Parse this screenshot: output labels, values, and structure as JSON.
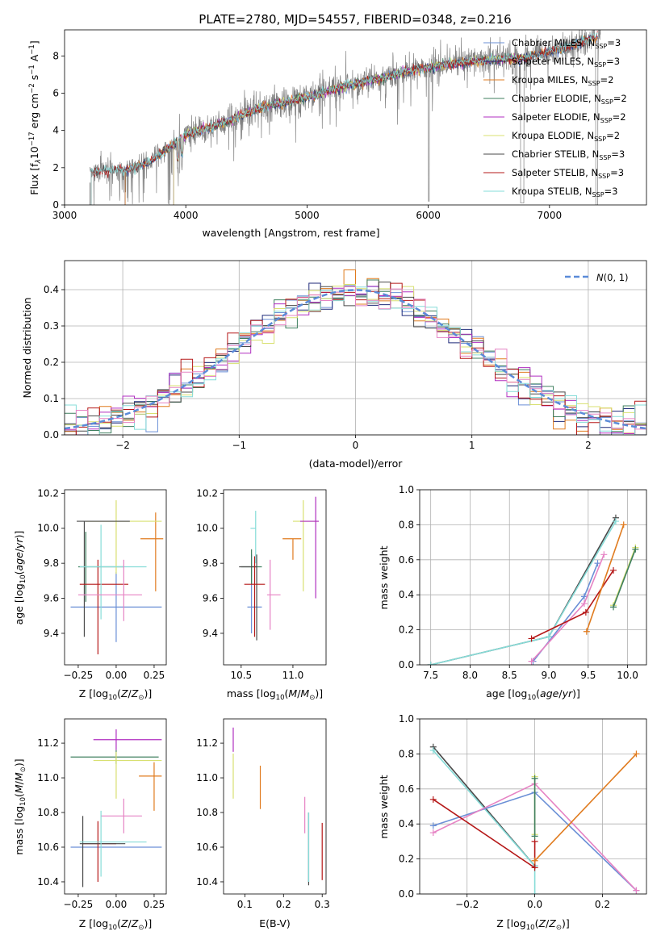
{
  "figure_title": "PLATE=2780, MJD=54557, FIBERID=0348, z=0.216",
  "colors": {
    "chabrier_miles": "#6a8fd6",
    "salpeter_miles": "#1f2a7a",
    "kroupa_miles": "#e07b1f",
    "chabrier_elodie": "#3f7f5f",
    "salpeter_elodie": "#b02fc0",
    "kroupa_elodie": "#d8e070",
    "chabrier_stelib": "#4a4a4a",
    "salpeter_stelib": "#b51818",
    "kroupa_stelib": "#86dcd8",
    "data": "#808080",
    "kroupa_elodie_pink": "#e683c4"
  },
  "chart_data": [
    {
      "id": "spectrum",
      "type": "line",
      "title": "PLATE=2780, MJD=54557, FIBERID=0348, z=0.216",
      "xlabel": "wavelength [Angstrom, rest frame]",
      "ylabel": "Flux [f_λ 10^-17 erg cm^-2 s^-1 A^-1]",
      "xlim": [
        3000,
        7800
      ],
      "ylim": [
        0,
        9.4
      ],
      "xticks": [
        3000,
        4000,
        5000,
        6000,
        7000
      ],
      "yticks": [
        0,
        2,
        4,
        6,
        8
      ],
      "grid": false,
      "legend_position": "top-right",
      "continuum": {
        "x": [
          3200,
          3500,
          3700,
          3900,
          4000,
          4300,
          4600,
          5000,
          5300,
          5600,
          5900,
          6200,
          6500,
          6800,
          7100,
          7400
        ],
        "y": [
          1.8,
          1.9,
          2.3,
          3.3,
          3.8,
          4.4,
          5.2,
          5.8,
          6.4,
          6.8,
          7.3,
          7.6,
          7.8,
          7.9,
          8.4,
          9.1
        ]
      },
      "series": [
        {
          "label": "Chabrier MILES, N",
          "sub": "SSP",
          "suffix": "=3"
        },
        {
          "label": "Salpeter MILES, N",
          "sub": "SSP",
          "suffix": "=3"
        },
        {
          "label": "Kroupa MILES, N",
          "sub": "SSP",
          "suffix": "=2"
        },
        {
          "label": "Chabrier ELODIE, N",
          "sub": "SSP",
          "suffix": "=2"
        },
        {
          "label": "Salpeter ELODIE, N",
          "sub": "SSP",
          "suffix": "=2"
        },
        {
          "label": "Kroupa ELODIE, N",
          "sub": "SSP",
          "suffix": "=2"
        },
        {
          "label": "Chabrier STELIB, N",
          "sub": "SSP",
          "suffix": "=3"
        },
        {
          "label": "Salpeter STELIB, N",
          "sub": "SSP",
          "suffix": "=3"
        },
        {
          "label": "Kroupa STELIB, N",
          "sub": "SSP",
          "suffix": "=3"
        }
      ]
    },
    {
      "id": "residuals",
      "type": "histogram",
      "xlabel": "(data-model)/error",
      "ylabel": "Normed distribution",
      "xlim": [
        -2.5,
        2.5
      ],
      "ylim": [
        0,
        0.48
      ],
      "xticks": [
        -2,
        -1,
        0,
        1,
        2
      ],
      "yticks": [
        0.0,
        0.1,
        0.2,
        0.3,
        0.4
      ],
      "grid": true,
      "bin_width": 0.1,
      "legend_position": "top-right",
      "legend_label": "N(0,1)"
    },
    {
      "id": "age_vs_Z",
      "type": "errorbar",
      "xlabel": "Z [log10(Z/Z_sun)]",
      "ylabel": "age  [log10(age/yr)]",
      "xlim": [
        -0.34,
        0.33
      ],
      "ylim": [
        9.22,
        10.22
      ],
      "xticks": [
        -0.25,
        0.0,
        0.25
      ],
      "yticks": [
        9.4,
        9.6,
        9.8,
        10.0,
        10.2
      ],
      "bars": [
        {
          "c": "chabrier_miles",
          "x": 0.0,
          "xerr": [
            0.3,
            0.3
          ],
          "y": 9.55,
          "yerr": [
            0.2,
            0.2
          ]
        },
        {
          "c": "kroupa_miles",
          "x": 0.26,
          "xerr": [
            0.1,
            0.05
          ],
          "y": 9.94,
          "yerr": [
            0.3,
            0.15
          ]
        },
        {
          "c": "chabrier_elodie",
          "x": -0.2,
          "xerr": [
            0.05,
            0.25
          ],
          "y": 9.78,
          "yerr": [
            0.2,
            0.2
          ]
        },
        {
          "c": "kroupa_elodie",
          "x": 0.0,
          "xerr": [
            0.2,
            0.3
          ],
          "y": 10.04,
          "yerr": [
            0.3,
            0.12
          ]
        },
        {
          "c": "chabrier_stelib",
          "x": -0.21,
          "xerr": [
            0.05,
            0.3
          ],
          "y": 10.04,
          "yerr": [
            0.66,
            0.0
          ]
        },
        {
          "c": "salpeter_stelib",
          "x": -0.12,
          "xerr": [
            0.12,
            0.2
          ],
          "y": 9.68,
          "yerr": [
            0.4,
            0.14
          ]
        },
        {
          "c": "kroupa_stelib",
          "x": -0.1,
          "xerr": [
            0.14,
            0.3
          ],
          "y": 9.78,
          "yerr": [
            0.3,
            0.24
          ]
        },
        {
          "c": "kroupa_elodie_pink",
          "x": 0.05,
          "xerr": [
            0.3,
            0.12
          ],
          "y": 9.62,
          "yerr": [
            0.15,
            0.2
          ]
        }
      ]
    },
    {
      "id": "age_vs_mass",
      "type": "errorbar",
      "xlabel": "mass [log10(M/M_sun)]",
      "ylabel": "",
      "xlim": [
        10.33,
        11.32
      ],
      "ylim": [
        9.22,
        10.22
      ],
      "xticks": [
        10.5,
        11.0
      ],
      "yticks": [
        9.4,
        9.6,
        9.8,
        10.0,
        10.2
      ],
      "bars": [
        {
          "c": "chabrier_miles",
          "x": 10.6,
          "xerr": [
            0.04,
            0.1
          ],
          "y": 9.55,
          "yerr": [
            0.15,
            0.3
          ]
        },
        {
          "c": "kroupa_miles",
          "x": 11.0,
          "xerr": [
            0.1,
            0.08
          ],
          "y": 9.94,
          "yerr": [
            0.12,
            0.0
          ]
        },
        {
          "c": "chabrier_elodie",
          "x": 10.6,
          "xerr": [
            0.1,
            0.1
          ],
          "y": 9.78,
          "yerr": [
            0.1,
            0.1
          ]
        },
        {
          "c": "kroupa_elodie",
          "x": 11.1,
          "xerr": [
            0.1,
            0.15
          ],
          "y": 10.04,
          "yerr": [
            0.4,
            0.12
          ]
        },
        {
          "c": "salpeter_elodie",
          "x": 11.22,
          "xerr": [
            0.15,
            0.03
          ],
          "y": 10.04,
          "yerr": [
            0.44,
            0.14
          ]
        },
        {
          "c": "chabrier_stelib",
          "x": 10.65,
          "xerr": [
            0.17,
            0.0
          ],
          "y": 9.78,
          "yerr": [
            0.42,
            0.07
          ]
        },
        {
          "c": "salpeter_stelib",
          "x": 10.63,
          "xerr": [
            0.1,
            0.1
          ],
          "y": 9.68,
          "yerr": [
            0.3,
            0.16
          ]
        },
        {
          "c": "kroupa_stelib",
          "x": 10.64,
          "xerr": [
            0.05,
            0.0
          ],
          "y": 10.0,
          "yerr": [
            0.2,
            0.1
          ]
        },
        {
          "c": "kroupa_elodie_pink",
          "x": 10.78,
          "xerr": [
            0.03,
            0.1
          ],
          "y": 9.62,
          "yerr": [
            0.2,
            0.2
          ]
        }
      ]
    },
    {
      "id": "weight_vs_age",
      "type": "line",
      "xlabel": "age  [log10(age/yr)]",
      "ylabel": "mass weight",
      "xlim": [
        7.36,
        10.24
      ],
      "ylim": [
        0,
        1.0
      ],
      "xticks": [
        7.5,
        8.0,
        8.5,
        9.0,
        9.5,
        10.0
      ],
      "yticks": [
        0.0,
        0.2,
        0.4,
        0.6,
        0.8,
        1.0
      ],
      "grid": true,
      "series": [
        {
          "c": "chabrier_stelib",
          "x": [
            7.5,
            9.0,
            9.85
          ],
          "y": [
            0.0,
            0.16,
            0.84
          ]
        },
        {
          "c": "kroupa_stelib",
          "x": [
            7.5,
            9.0,
            9.85
          ],
          "y": [
            0.0,
            0.16,
            0.82
          ]
        },
        {
          "c": "chabrier_miles",
          "x": [
            8.8,
            9.45,
            9.62
          ],
          "y": [
            0.02,
            0.39,
            0.58
          ]
        },
        {
          "c": "kroupa_elodie_pink",
          "x": [
            8.78,
            9.45,
            9.7
          ],
          "y": [
            0.02,
            0.35,
            0.63
          ]
        },
        {
          "c": "salpeter_stelib",
          "x": [
            8.78,
            9.47,
            9.82
          ],
          "y": [
            0.15,
            0.3,
            0.54
          ]
        },
        {
          "c": "kroupa_miles",
          "x": [
            9.48,
            9.95
          ],
          "y": [
            0.19,
            0.8
          ]
        },
        {
          "c": "kroupa_elodie",
          "x": [
            9.82,
            10.1
          ],
          "y": [
            0.34,
            0.67
          ]
        },
        {
          "c": "chabrier_elodie",
          "x": [
            9.82,
            10.1
          ],
          "y": [
            0.33,
            0.66
          ]
        }
      ]
    },
    {
      "id": "mass_vs_Z",
      "type": "errorbar",
      "xlabel": "Z [log10(Z/Z_sun)]",
      "ylabel": "mass [log10(M/M_sun)]",
      "xlim": [
        -0.34,
        0.33
      ],
      "ylim": [
        10.33,
        11.34
      ],
      "xticks": [
        -0.25,
        0.0,
        0.25
      ],
      "yticks": [
        10.4,
        10.6,
        10.8,
        11.0,
        11.2
      ],
      "bars": [
        {
          "c": "salpeter_elodie",
          "x": 0.0,
          "xerr": [
            0.15,
            0.3
          ],
          "y": 11.22,
          "yerr": [
            0.06,
            0.06
          ]
        },
        {
          "c": "chabrier_elodie",
          "x": 0.0,
          "xerr": [
            0.3,
            0.28
          ],
          "y": 11.12,
          "yerr": [
            0.04,
            0.04
          ]
        },
        {
          "c": "kroupa_elodie",
          "x": 0.0,
          "xerr": [
            0.15,
            0.3
          ],
          "y": 11.1,
          "yerr": [
            0.22,
            0.05
          ]
        },
        {
          "c": "kroupa_miles",
          "x": 0.25,
          "xerr": [
            0.1,
            0.05
          ],
          "y": 11.01,
          "yerr": [
            0.2,
            0.08
          ]
        },
        {
          "c": "kroupa_elodie_pink",
          "x": 0.05,
          "xerr": [
            0.15,
            0.12
          ],
          "y": 10.78,
          "yerr": [
            0.1,
            0.1
          ]
        },
        {
          "c": "chabrier_miles",
          "x": 0.0,
          "xerr": [
            0.3,
            0.3
          ],
          "y": 10.6,
          "yerr": [
            0.0,
            0.0
          ]
        },
        {
          "c": "salpeter_stelib",
          "x": -0.12,
          "xerr": [
            0.1,
            0.12
          ],
          "y": 10.62,
          "yerr": [
            0.22,
            0.13
          ]
        },
        {
          "c": "chabrier_stelib",
          "x": -0.22,
          "xerr": [
            0.02,
            0.28
          ],
          "y": 10.62,
          "yerr": [
            0.25,
            0.16
          ]
        },
        {
          "c": "kroupa_stelib",
          "x": -0.1,
          "xerr": [
            0.14,
            0.3
          ],
          "y": 10.63,
          "yerr": [
            0.2,
            0.18
          ]
        }
      ]
    },
    {
      "id": "mass_vs_ebv",
      "type": "errorbar",
      "xlabel": "E(B-V)",
      "ylabel": "",
      "xlim": [
        0.045,
        0.31
      ],
      "ylim": [
        10.33,
        11.34
      ],
      "xticks": [
        0.1,
        0.2,
        0.3
      ],
      "yticks": [
        10.4,
        10.6,
        10.8,
        11.0,
        11.2
      ],
      "bars": [
        {
          "c": "salpeter_elodie",
          "x": 0.07,
          "xerr": [
            0,
            0
          ],
          "y": 11.22,
          "yerr": [
            0.07,
            0.07
          ]
        },
        {
          "c": "kroupa_elodie",
          "x": 0.07,
          "xerr": [
            0,
            0
          ],
          "y": 11.04,
          "yerr": [
            0.16,
            0.1
          ]
        },
        {
          "c": "kroupa_miles",
          "x": 0.14,
          "xerr": [
            0,
            0
          ],
          "y": 10.95,
          "yerr": [
            0.13,
            0.12
          ]
        },
        {
          "c": "kroupa_elodie_pink",
          "x": 0.255,
          "xerr": [
            0,
            0
          ],
          "y": 10.78,
          "yerr": [
            0.1,
            0.11
          ]
        },
        {
          "c": "chabrier_miles",
          "x": 0.265,
          "xerr": [
            0,
            0
          ],
          "y": 10.6,
          "yerr": [
            0.2,
            0.2
          ]
        },
        {
          "c": "chabrier_stelib",
          "x": 0.265,
          "xerr": [
            0,
            0
          ],
          "y": 10.6,
          "yerr": [
            0.22,
            0.2
          ]
        },
        {
          "c": "kroupa_stelib",
          "x": 0.265,
          "xerr": [
            0,
            0
          ],
          "y": 10.6,
          "yerr": [
            0.2,
            0.2
          ]
        },
        {
          "c": "salpeter_stelib",
          "x": 0.3,
          "xerr": [
            0,
            0
          ],
          "y": 10.58,
          "yerr": [
            0.17,
            0.16
          ]
        }
      ]
    },
    {
      "id": "weight_vs_Z",
      "type": "line",
      "xlabel": "Z [log10(Z/Z_sun)]",
      "ylabel": "mass weight",
      "xlim": [
        -0.34,
        0.33
      ],
      "ylim": [
        0,
        1.0
      ],
      "xticks": [
        -0.2,
        0.0,
        0.2
      ],
      "yticks": [
        0.0,
        0.2,
        0.4,
        0.6,
        0.8,
        1.0
      ],
      "grid": true,
      "series": [
        {
          "c": "chabrier_stelib",
          "x": [
            -0.3,
            0.0
          ],
          "y": [
            0.84,
            0.16
          ]
        },
        {
          "c": "kroupa_stelib",
          "x": [
            -0.3,
            0.0,
            0.0
          ],
          "y": [
            0.82,
            0.16,
            0.0
          ]
        },
        {
          "c": "chabrier_miles",
          "x": [
            -0.3,
            0.0,
            0.3
          ],
          "y": [
            0.39,
            0.58,
            0.02
          ]
        },
        {
          "c": "kroupa_elodie_pink",
          "x": [
            -0.3,
            0.0,
            0.3
          ],
          "y": [
            0.35,
            0.63,
            0.02
          ]
        },
        {
          "c": "salpeter_stelib",
          "x": [
            -0.3,
            0.0,
            0.0
          ],
          "y": [
            0.54,
            0.15,
            0.3
          ]
        },
        {
          "c": "kroupa_miles",
          "x": [
            0.0,
            0.3
          ],
          "y": [
            0.19,
            0.8
          ]
        },
        {
          "c": "kroupa_elodie",
          "x": [
            0.0,
            0.0
          ],
          "y": [
            0.67,
            0.34
          ]
        },
        {
          "c": "chabrier_elodie",
          "x": [
            0.0,
            0.0
          ],
          "y": [
            0.66,
            0.33
          ]
        }
      ]
    }
  ]
}
